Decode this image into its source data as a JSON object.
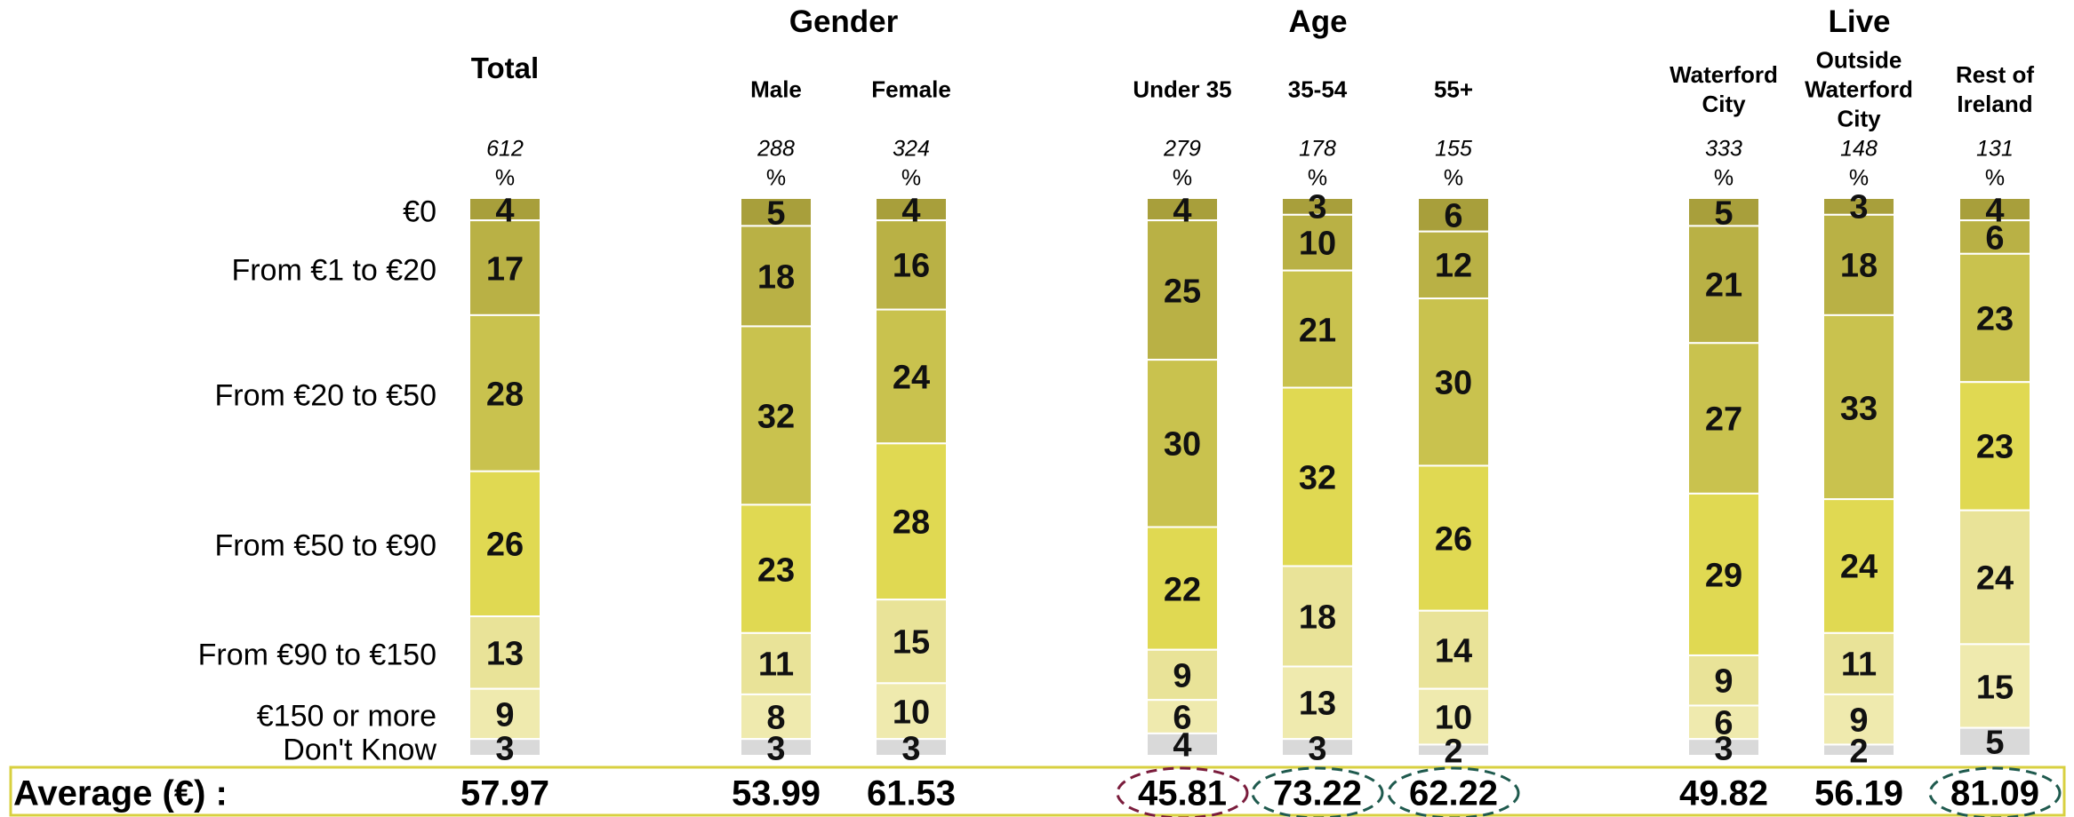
{
  "chart_data": {
    "type": "bar",
    "stacked": true,
    "groups": [
      {
        "title": "Gender",
        "columns": [
          1,
          2
        ]
      },
      {
        "title": "Age",
        "columns": [
          3,
          4,
          5
        ]
      },
      {
        "title": "Live",
        "columns": [
          6,
          7,
          8
        ]
      }
    ],
    "categories": [
      "Total",
      "Male",
      "Female",
      "Under 35",
      "35-54",
      "55+",
      "Waterford City",
      "Outside Waterford City",
      "Rest of Ireland"
    ],
    "bases": [
      612,
      288,
      324,
      279,
      178,
      155,
      333,
      148,
      131
    ],
    "unit": "%",
    "ylim": [
      0,
      100
    ],
    "series": [
      {
        "name": "€0",
        "color": "#a89f3b",
        "values": [
          4,
          5,
          4,
          4,
          3,
          6,
          5,
          3,
          4
        ]
      },
      {
        "name": "From €1 to €20",
        "color": "#b9b145",
        "values": [
          17,
          18,
          16,
          25,
          10,
          12,
          21,
          18,
          6
        ]
      },
      {
        "name": "From €20 to €50",
        "color": "#c9c24e",
        "values": [
          28,
          32,
          24,
          30,
          21,
          30,
          27,
          33,
          23
        ]
      },
      {
        "name": "From €50 to €90",
        "color": "#e0d952",
        "values": [
          26,
          23,
          28,
          22,
          32,
          26,
          29,
          24,
          23
        ]
      },
      {
        "name": "From €90 to €150",
        "color": "#e9e398",
        "values": [
          13,
          11,
          15,
          9,
          18,
          14,
          9,
          11,
          24
        ]
      },
      {
        "name": "€150 or more",
        "color": "#efeaae",
        "values": [
          9,
          8,
          10,
          6,
          13,
          10,
          6,
          9,
          15
        ]
      },
      {
        "name": "Don't Know",
        "color": "#d9d9d9",
        "values": [
          3,
          3,
          3,
          4,
          3,
          2,
          3,
          2,
          5
        ]
      }
    ],
    "average_label": "Average (€) :",
    "averages": [
      57.97,
      53.99,
      61.53,
      45.81,
      73.22,
      62.22,
      49.82,
      56.19,
      81.09
    ],
    "average_highlights": [
      null,
      null,
      null,
      "#7a1c3c",
      "#1f5a4e",
      "#1f5a4e",
      null,
      null,
      "#1f5a4e"
    ]
  }
}
